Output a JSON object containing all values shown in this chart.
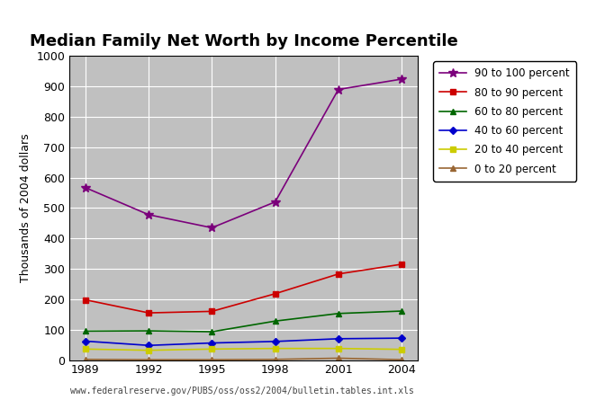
{
  "title": "Median Family Net Worth by Income Percentile",
  "ylabel": "Thousands of 2004 dollars",
  "source": "www.federalreserve.gov/PUBS/oss/oss2/2004/bulletin.tables.int.xls",
  "years": [
    1989,
    1992,
    1995,
    1998,
    2001,
    2004
  ],
  "series": [
    {
      "label": "90 to 100 percent",
      "color": "#7b007b",
      "marker": "*",
      "markersize": 7,
      "values": [
        567,
        478,
        435,
        520,
        890,
        924
      ]
    },
    {
      "label": "80 to 90 percent",
      "color": "#cc0000",
      "marker": "s",
      "markersize": 5,
      "values": [
        198,
        155,
        160,
        218,
        283,
        315
      ]
    },
    {
      "label": "60 to 80 percent",
      "color": "#006600",
      "marker": "^",
      "markersize": 5,
      "values": [
        95,
        96,
        93,
        128,
        153,
        161
      ]
    },
    {
      "label": "40 to 60 percent",
      "color": "#0000cc",
      "marker": "D",
      "markersize": 4,
      "values": [
        62,
        48,
        56,
        61,
        70,
        72
      ]
    },
    {
      "label": "20 to 40 percent",
      "color": "#cccc00",
      "marker": "s",
      "markersize": 5,
      "values": [
        36,
        32,
        36,
        38,
        38,
        35
      ]
    },
    {
      "label": "0 to 20 percent",
      "color": "#996633",
      "marker": "^",
      "markersize": 5,
      "values": [
        2,
        1,
        1,
        2,
        6,
        1
      ]
    }
  ],
  "ylim": [
    0,
    1000
  ],
  "yticks": [
    0,
    100,
    200,
    300,
    400,
    500,
    600,
    700,
    800,
    900,
    1000
  ],
  "bg_color": "#c0c0c0",
  "fig_bg_color": "#ffffff",
  "grid_color": "#ffffff",
  "title_fontsize": 13,
  "axis_label_fontsize": 9,
  "tick_fontsize": 9,
  "legend_fontsize": 8.5,
  "linewidth": 1.2
}
